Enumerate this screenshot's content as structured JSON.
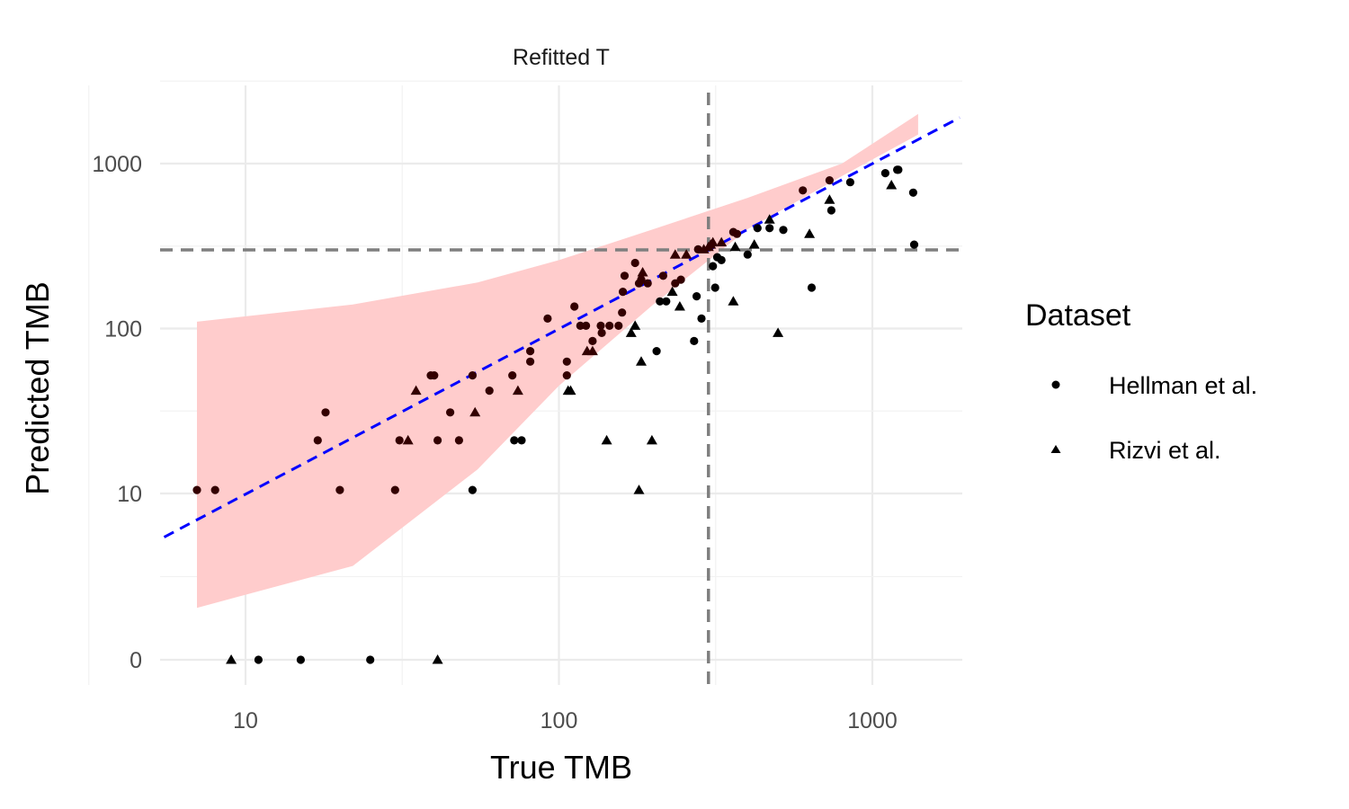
{
  "chart_data": {
    "type": "scatter",
    "facet_title": "Refitted T",
    "xlabel": "True TMB",
    "ylabel": "Predicted TMB",
    "x_scale": "log10",
    "y_scale": "pseudo-log",
    "xlim": [
      5.5,
      1900
    ],
    "ylim": [
      -0.1,
      2400
    ],
    "x_ticks": [
      10,
      100,
      1000
    ],
    "x_tick_labels": [
      "10",
      "100",
      "1000"
    ],
    "y_ticks": [
      0,
      10,
      100,
      1000
    ],
    "y_tick_labels": [
      "0",
      "10",
      "100",
      "1000"
    ],
    "grid": true,
    "threshold_x": 300,
    "threshold_y": 300,
    "identity_line_color": "#0000ff",
    "threshold_color": "#7f7f7f",
    "band_color": "#ffcccc",
    "interval_band": {
      "x": [
        7,
        22,
        55,
        100,
        200,
        400,
        800,
        1400
      ],
      "lower": [
        1.5,
        3.5,
        14,
        45,
        140,
        400,
        840,
        1500
      ],
      "upper": [
        110,
        140,
        190,
        260,
        400,
        620,
        1000,
        2000
      ]
    },
    "legend": {
      "title": "Dataset",
      "position": "right",
      "entries": [
        {
          "label": "Hellman et al.",
          "shape": "circle"
        },
        {
          "label": "Rizvi et al.",
          "shape": "triangle"
        }
      ]
    },
    "series": [
      {
        "name": "Hellman et al.",
        "shape": "circle",
        "color": "#000000",
        "inside_band_color": "#330000",
        "points": [
          [
            7,
            10.5
          ],
          [
            8,
            10.5
          ],
          [
            17,
            21
          ],
          [
            18,
            31
          ],
          [
            20,
            10.5
          ],
          [
            30,
            10.5
          ],
          [
            31,
            21
          ],
          [
            39,
            52
          ],
          [
            40,
            52
          ],
          [
            41,
            21
          ],
          [
            45,
            31
          ],
          [
            48,
            21
          ],
          [
            53,
            10.5
          ],
          [
            53,
            52
          ],
          [
            60,
            42
          ],
          [
            71,
            52
          ],
          [
            72,
            21
          ],
          [
            76,
            21
          ],
          [
            81,
            73
          ],
          [
            81,
            63
          ],
          [
            92,
            115
          ],
          [
            106,
            52
          ],
          [
            106,
            63
          ],
          [
            112,
            136
          ],
          [
            117,
            104
          ],
          [
            122,
            104
          ],
          [
            128,
            84
          ],
          [
            136,
            104
          ],
          [
            137,
            94
          ],
          [
            145,
            104
          ],
          [
            155,
            104
          ],
          [
            159,
            125
          ],
          [
            160,
            167
          ],
          [
            162,
            209
          ],
          [
            175,
            250
          ],
          [
            180,
            188
          ],
          [
            183,
            198
          ],
          [
            192,
            188
          ],
          [
            205,
            73
          ],
          [
            210,
            146
          ],
          [
            215,
            209
          ],
          [
            220,
            146
          ],
          [
            235,
            188
          ],
          [
            245,
            198
          ],
          [
            270,
            84
          ],
          [
            275,
            157
          ],
          [
            278,
            302
          ],
          [
            285,
            115
          ],
          [
            310,
            239
          ],
          [
            315,
            177
          ],
          [
            320,
            271
          ],
          [
            330,
            260
          ],
          [
            360,
            385
          ],
          [
            370,
            375
          ],
          [
            400,
            281
          ],
          [
            430,
            406
          ],
          [
            470,
            406
          ],
          [
            520,
            396
          ],
          [
            600,
            688
          ],
          [
            640,
            177
          ],
          [
            730,
            792
          ],
          [
            740,
            521
          ],
          [
            850,
            771
          ],
          [
            1100,
            876
          ],
          [
            1200,
            917
          ],
          [
            1210,
            917
          ],
          [
            1350,
            667
          ],
          [
            1360,
            323
          ],
          [
            11,
            0
          ],
          [
            15,
            0
          ],
          [
            25,
            0
          ]
        ]
      },
      {
        "name": "Rizvi et al.",
        "shape": "triangle",
        "color": "#000000",
        "inside_band_color": "#330000",
        "points": [
          [
            9,
            0
          ],
          [
            33,
            21
          ],
          [
            35,
            42
          ],
          [
            41,
            0
          ],
          [
            54,
            31
          ],
          [
            74,
            42
          ],
          [
            107,
            42
          ],
          [
            109,
            42
          ],
          [
            123,
            73
          ],
          [
            128,
            73
          ],
          [
            142,
            21
          ],
          [
            170,
            94
          ],
          [
            175,
            104
          ],
          [
            180,
            10.5
          ],
          [
            182,
            198
          ],
          [
            183,
            63
          ],
          [
            185,
            219
          ],
          [
            198,
            21
          ],
          [
            230,
            167
          ],
          [
            235,
            281
          ],
          [
            243,
            136
          ],
          [
            255,
            281
          ],
          [
            290,
            302
          ],
          [
            300,
            312
          ],
          [
            305,
            323
          ],
          [
            310,
            333
          ],
          [
            330,
            333
          ],
          [
            360,
            146
          ],
          [
            365,
            312
          ],
          [
            420,
            323
          ],
          [
            470,
            458
          ],
          [
            500,
            94
          ],
          [
            630,
            375
          ],
          [
            730,
            604
          ],
          [
            1150,
            740
          ]
        ]
      }
    ]
  }
}
